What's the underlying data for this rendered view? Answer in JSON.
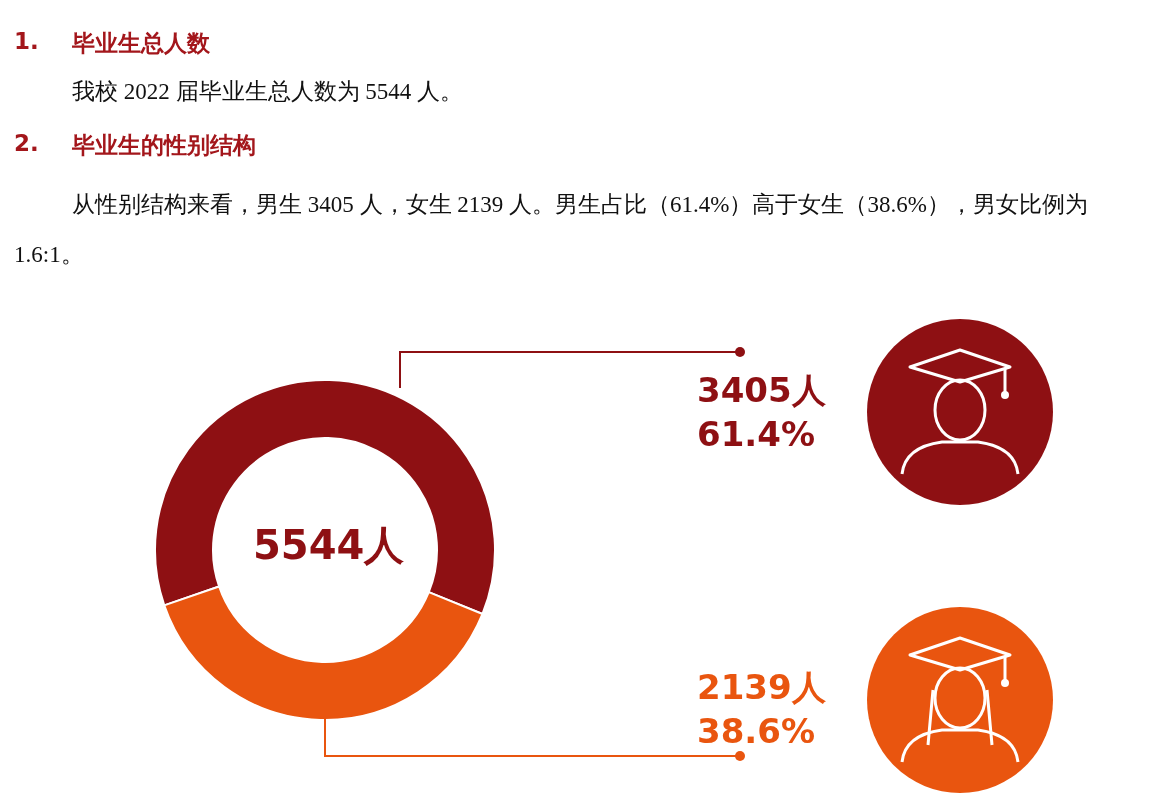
{
  "chart_data": {
    "type": "donut",
    "categories": [
      null,
      null
    ],
    "values": [
      3405,
      2139
    ],
    "colors": [
      "#8e1013",
      "#e9550f"
    ],
    "value_labels": [
      "3405人\n61.4%",
      "2139人\n38.6%"
    ],
    "annotations": [
      "1.",
      "毕业生总人数",
      "我校 2022 届毕业生总人数为 5544 人。",
      "2.",
      "毕业生的性别结构",
      "从性别结构来看，男生 3405 人，女生 2139 人。男生占比（61.4%）高于女生（38.6%），男女比例为 1.6:1。",
      "5544人"
    ]
  }
}
